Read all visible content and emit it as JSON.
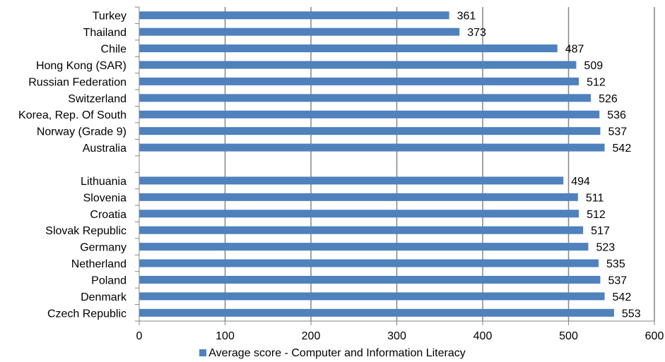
{
  "chart_data": {
    "type": "bar",
    "orientation": "horizontal",
    "categories": [
      "Turkey",
      "Thailand",
      "Chile",
      "Hong Kong (SAR)",
      "Russian Federation",
      "Switzerland",
      "Korea, Rep. Of South",
      "Norway (Grade 9)",
      "Australia",
      "",
      "Lithuania",
      "Slovenia",
      "Croatia",
      "Slovak Republic",
      "Germany",
      "Netherland",
      "Poland",
      "Denmark",
      "Czech Republic"
    ],
    "series": [
      {
        "name": "Average score - Computer and Information Literacy",
        "values": [
          361,
          373,
          487,
          509,
          512,
          526,
          536,
          537,
          542,
          null,
          494,
          511,
          512,
          517,
          523,
          535,
          537,
          542,
          553
        ]
      }
    ],
    "data_labels": [
      "361",
      "373",
      "487",
      "509",
      "512",
      "526",
      "536",
      "537",
      "542",
      "",
      "494",
      "511",
      "512",
      "517",
      "523",
      "535",
      "537",
      "542",
      "553"
    ],
    "x_ticks": [
      "0",
      "100",
      "200",
      "300",
      "400",
      "500",
      "600"
    ],
    "xlim": [
      0,
      600
    ],
    "grid": "vertical",
    "legend_position": "bottom",
    "colors": {
      "bar": "#4f81bd",
      "grid": "#868686",
      "axis": "#868686"
    }
  },
  "legend": {
    "label": "Average score - Computer and Information Literacy",
    "swatch_color": "#4f81bd"
  }
}
